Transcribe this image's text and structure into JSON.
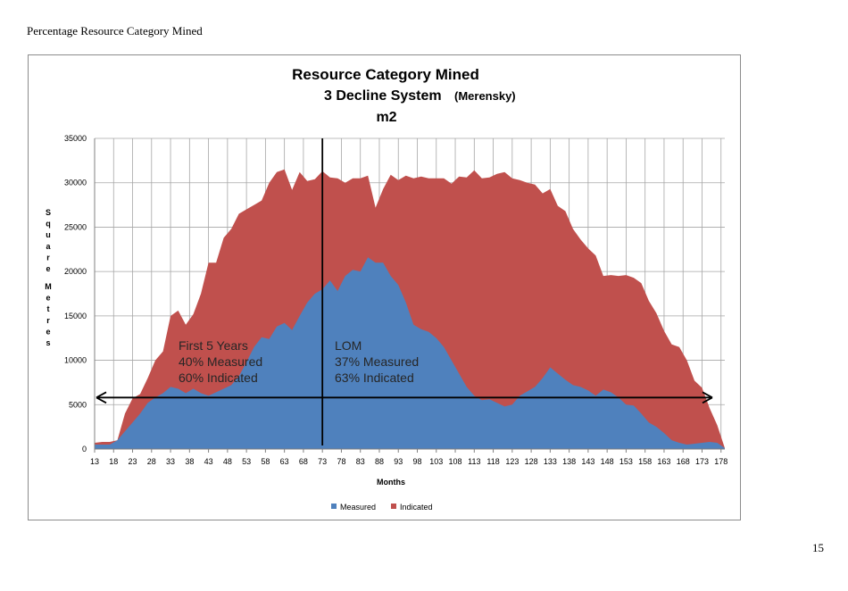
{
  "page": {
    "header": "Percentage Resource Category Mined",
    "page_number": "15"
  },
  "chart_data": {
    "type": "area",
    "stacked": true,
    "title": "Resource Category Mined",
    "subtitle_main": "3 Decline System",
    "subtitle_sub": "(Merensky)",
    "unit_line": "m2",
    "ylabel": "Square Metres",
    "xlabel": "Months",
    "ylim": [
      0,
      35000
    ],
    "xlim": [
      13,
      179
    ],
    "yticks": [
      0,
      5000,
      10000,
      15000,
      20000,
      25000,
      30000,
      35000
    ],
    "xticks": [
      13,
      18,
      23,
      28,
      33,
      38,
      43,
      48,
      53,
      58,
      63,
      68,
      73,
      78,
      83,
      88,
      93,
      98,
      103,
      108,
      113,
      118,
      123,
      128,
      133,
      138,
      143,
      148,
      153,
      158,
      163,
      168,
      173,
      178
    ],
    "grid": true,
    "legend_position": "bottom",
    "colors": {
      "Measured": "#4f81bd",
      "Indicated": "#c0504d"
    },
    "x": [
      13,
      15,
      17,
      19,
      21,
      23,
      25,
      27,
      29,
      31,
      33,
      35,
      37,
      39,
      41,
      43,
      45,
      47,
      49,
      51,
      53,
      55,
      57,
      59,
      61,
      63,
      65,
      67,
      69,
      71,
      73,
      75,
      77,
      79,
      81,
      83,
      85,
      87,
      89,
      91,
      93,
      95,
      97,
      99,
      101,
      103,
      105,
      107,
      109,
      111,
      113,
      115,
      117,
      119,
      121,
      123,
      125,
      127,
      129,
      131,
      133,
      135,
      137,
      139,
      141,
      143,
      145,
      147,
      149,
      151,
      153,
      155,
      157,
      159,
      161,
      163,
      165,
      167,
      169,
      171,
      173,
      175,
      177,
      179
    ],
    "series": [
      {
        "name": "Measured",
        "values": [
          500,
          500,
          500,
          1000,
          2000,
          3000,
          4000,
          5200,
          5800,
          6300,
          7000,
          6800,
          6300,
          6800,
          6300,
          6000,
          6400,
          6800,
          7200,
          8200,
          9800,
          11500,
          12600,
          12400,
          13800,
          14200,
          13400,
          15000,
          16500,
          17500,
          18000,
          19000,
          17800,
          19500,
          20200,
          20000,
          21600,
          21000,
          21000,
          19500,
          18500,
          16500,
          14000,
          13500,
          13200,
          12500,
          11500,
          10000,
          8500,
          7000,
          6000,
          5500,
          5600,
          5200,
          4800,
          5000,
          6000,
          6500,
          7000,
          8000,
          9200,
          8500,
          7800,
          7200,
          7000,
          6600,
          6000,
          6700,
          6400,
          5800,
          5000,
          4900,
          4000,
          3000,
          2500,
          1800,
          1000,
          700,
          500,
          600,
          700,
          800,
          700,
          100
        ]
      },
      {
        "name": "Indicated",
        "values": [
          200,
          300,
          300,
          0,
          2000,
          2700,
          2200,
          2800,
          4200,
          4700,
          8000,
          8800,
          7700,
          8400,
          11200,
          15000,
          14600,
          17000,
          17600,
          18300,
          17200,
          16000,
          15400,
          17600,
          17400,
          17300,
          15800,
          16200,
          13700,
          12900,
          13300,
          11600,
          12700,
          10500,
          10300,
          10500,
          9200,
          6200,
          8300,
          11400,
          11800,
          14300,
          16500,
          17200,
          17300,
          18000,
          19000,
          19900,
          22200,
          23600,
          25400,
          25000,
          25000,
          25800,
          26400,
          25500,
          24300,
          23500,
          22800,
          20800,
          20100,
          18900,
          19000,
          17600,
          16600,
          16000,
          15800,
          12800,
          13200,
          13700,
          14600,
          14400,
          14700,
          13700,
          12800,
          11500,
          10800,
          10800,
          9500,
          7100,
          6200,
          3800,
          2000,
          0
        ]
      }
    ],
    "annotations": {
      "left_lines": [
        "First 5 Years",
        "40% Measured",
        "60% Indicated"
      ],
      "right_lines": [
        "LOM",
        "37% Measured",
        "63% Indicated"
      ],
      "divider_x": 73,
      "arrow_y": 5800
    }
  }
}
